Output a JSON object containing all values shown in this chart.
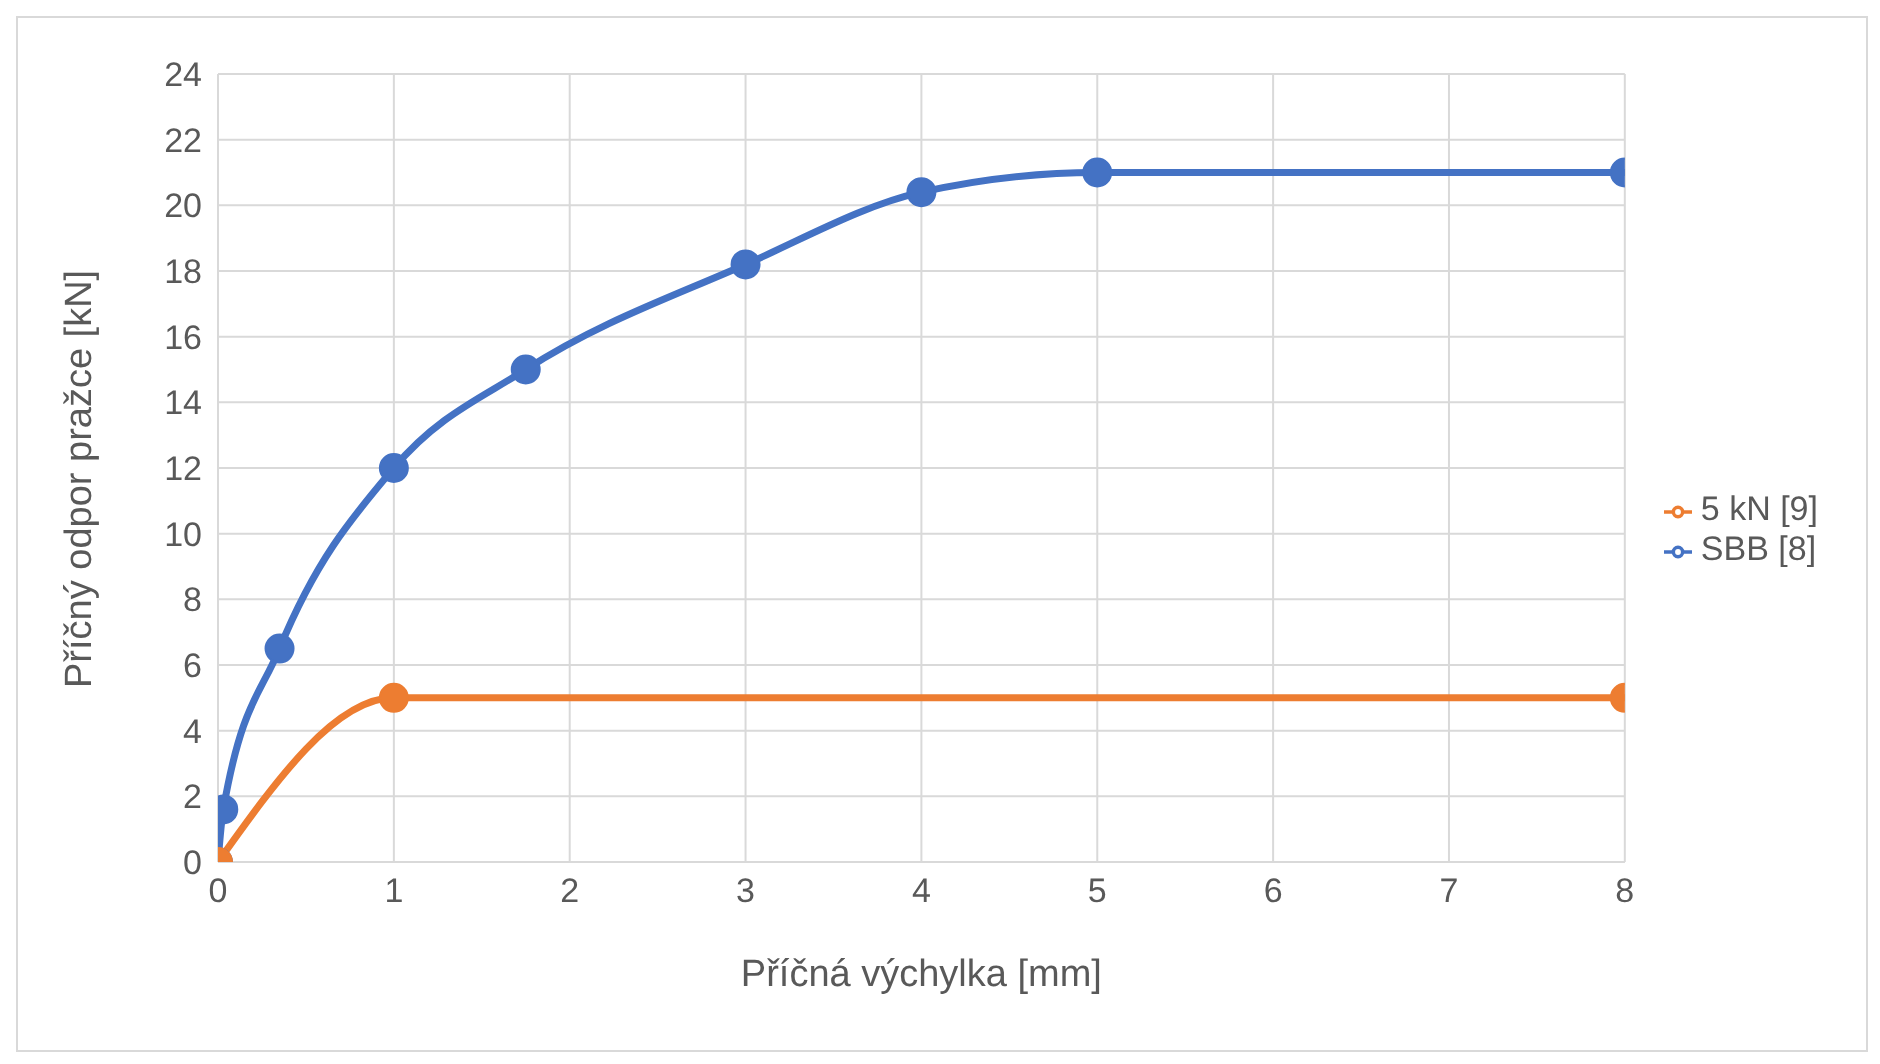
{
  "chart_data": {
    "type": "line",
    "xlabel": "Příčná výchylka [mm]",
    "ylabel": "Příčný odpor pražce [kN]",
    "series": [
      {
        "name": "SBB [8]",
        "color": "#4472c4",
        "x": [
          0,
          0.03,
          0.35,
          1,
          1.75,
          3,
          4,
          5,
          8
        ],
        "values": [
          0,
          1.6,
          6.5,
          12,
          15,
          18.2,
          20.4,
          21,
          21
        ]
      },
      {
        "name": "5 kN [9]",
        "color": "#ed7d31",
        "x": [
          0,
          1,
          8
        ],
        "values": [
          0,
          5,
          5
        ]
      }
    ],
    "xlim": [
      0,
      8
    ],
    "xticks": [
      0,
      1,
      2,
      3,
      4,
      5,
      6,
      7,
      8
    ],
    "ylim": [
      0,
      24
    ],
    "yticks": [
      0,
      2,
      4,
      6,
      8,
      10,
      12,
      14,
      16,
      18,
      20,
      22,
      24
    ],
    "grid": true,
    "legend": "right",
    "marker": "circle",
    "line_style": "solid"
  }
}
